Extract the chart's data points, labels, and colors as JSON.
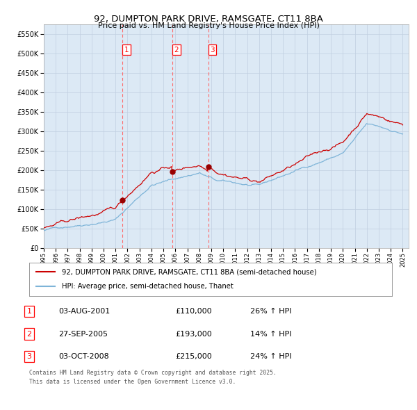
{
  "title": "92, DUMPTON PARK DRIVE, RAMSGATE, CT11 8BA",
  "subtitle": "Price paid vs. HM Land Registry's House Price Index (HPI)",
  "xlim": [
    1995.0,
    2025.5
  ],
  "ylim": [
    0,
    575000
  ],
  "yticks": [
    0,
    50000,
    100000,
    150000,
    200000,
    250000,
    300000,
    350000,
    400000,
    450000,
    500000,
    550000
  ],
  "ytick_labels": [
    "£0",
    "£50K",
    "£100K",
    "£150K",
    "£200K",
    "£250K",
    "£300K",
    "£350K",
    "£400K",
    "£450K",
    "£500K",
    "£550K"
  ],
  "transactions": [
    {
      "num": 1,
      "date": "03-AUG-2001",
      "price": 110000,
      "hpi_change": "26% ↑ HPI",
      "x": 2001.58
    },
    {
      "num": 2,
      "date": "27-SEP-2005",
      "price": 193000,
      "hpi_change": "14% ↑ HPI",
      "x": 2005.74
    },
    {
      "num": 3,
      "date": "03-OCT-2008",
      "price": 215000,
      "hpi_change": "24% ↑ HPI",
      "x": 2008.75
    }
  ],
  "legend_label_red": "92, DUMPTON PARK DRIVE, RAMSGATE, CT11 8BA (semi-detached house)",
  "legend_label_blue": "HPI: Average price, semi-detached house, Thanet",
  "footnote_line1": "Contains HM Land Registry data © Crown copyright and database right 2025.",
  "footnote_line2": "This data is licensed under the Open Government Licence v3.0.",
  "red_color": "#cc0000",
  "blue_color": "#7eb4d8",
  "background_color": "#dce9f5",
  "grid_color": "#c0cfe0",
  "vline_color": "#ff6666",
  "marker_dot_color": "#990000"
}
